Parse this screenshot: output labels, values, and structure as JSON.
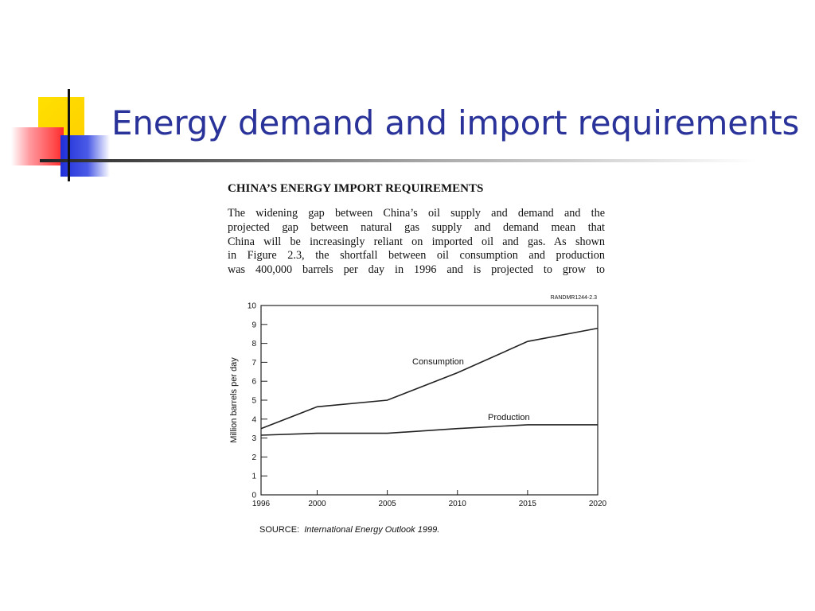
{
  "slide": {
    "title": "Energy demand and import requirements"
  },
  "document": {
    "heading": "CHINA’S ENERGY IMPORT REQUIREMENTS",
    "lines": [
      "The widening gap between China’s oil supply and demand and the",
      "projected gap between natural gas supply and demand mean that",
      "China will be increasingly reliant on imported oil and gas.  As shown",
      "in Figure 2.3, the shortfall between oil consumption and production",
      "was 400,000 barrels per day in 1996 and is projected to grow to"
    ],
    "source_label": "SOURCE:",
    "source_text": "International Energy Outlook 1999."
  },
  "chart_data": {
    "type": "line",
    "figure_tag": "RANDMR1244-2.3",
    "x": [
      1996,
      2000,
      2005,
      2010,
      2015,
      2020
    ],
    "x_tick_labels": [
      "1996",
      "2000",
      "2005",
      "2010",
      "2015",
      "2020"
    ],
    "ylabel": "Million barrels per day",
    "xlabel": "",
    "ylim": [
      0,
      10
    ],
    "y_ticks": [
      0,
      1,
      2,
      3,
      4,
      5,
      6,
      7,
      8,
      9,
      10
    ],
    "grid": false,
    "series": [
      {
        "name": "Consumption",
        "values": [
          3.5,
          4.65,
          5.0,
          6.45,
          8.1,
          8.8
        ]
      },
      {
        "name": "Production",
        "values": [
          3.15,
          3.25,
          3.25,
          3.5,
          3.7,
          3.7
        ]
      }
    ]
  },
  "colors": {
    "title": "#2a3399",
    "line": "#222222",
    "accent_yellow": "#ffd800",
    "accent_red": "#ff2b2b",
    "accent_blue": "#1f2fd8"
  }
}
